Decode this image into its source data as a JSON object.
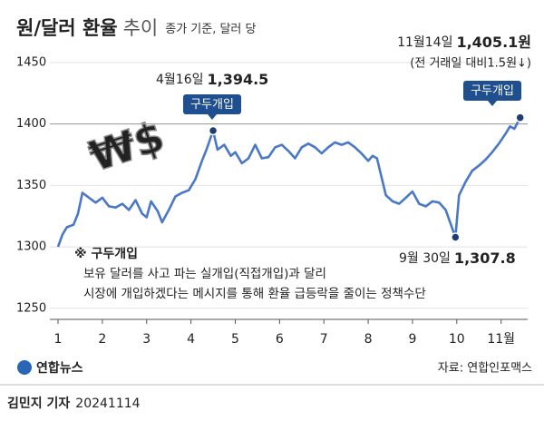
{
  "chart_data": {
    "type": "line",
    "title": "원/달러 환율",
    "title_light": "추이",
    "subtitle": "종가 기준, 달러 당",
    "icon": "₩$",
    "x": [
      1.0,
      1.1,
      1.2,
      1.35,
      1.45,
      1.55,
      1.7,
      1.85,
      2.0,
      2.15,
      2.3,
      2.45,
      2.6,
      2.75,
      2.9,
      3.0,
      3.1,
      3.25,
      3.35,
      3.5,
      3.65,
      3.8,
      3.95,
      4.1,
      4.25,
      4.35,
      4.5,
      4.6,
      4.75,
      4.9,
      5.0,
      5.15,
      5.3,
      5.45,
      5.6,
      5.75,
      5.9,
      6.05,
      6.2,
      6.35,
      6.5,
      6.65,
      6.8,
      6.95,
      7.1,
      7.25,
      7.4,
      7.55,
      7.7,
      7.85,
      8.0,
      8.1,
      8.2,
      8.3,
      8.4,
      8.55,
      8.7,
      8.85,
      9.0,
      9.15,
      9.3,
      9.45,
      9.6,
      9.75,
      9.97,
      10.05,
      10.2,
      10.35,
      10.5,
      10.65,
      10.8,
      10.95,
      11.1,
      11.2,
      11.3,
      11.43
    ],
    "series": [
      {
        "name": "원/달러 환율",
        "color": "#4a78c8",
        "marker_color": "#1e3d73",
        "values": [
          1300,
          1310,
          1316,
          1318,
          1327,
          1344,
          1340,
          1336,
          1340,
          1333,
          1332,
          1335,
          1330,
          1338,
          1327,
          1324,
          1337,
          1329,
          1320,
          1330,
          1341,
          1344,
          1346,
          1355,
          1370,
          1379,
          1394.5,
          1379,
          1383,
          1374,
          1377,
          1368,
          1372,
          1383,
          1372,
          1373,
          1381,
          1383,
          1378,
          1372,
          1381,
          1384,
          1381,
          1376,
          1381,
          1385,
          1383,
          1385,
          1381,
          1376,
          1370,
          1374,
          1372,
          1357,
          1342,
          1337,
          1335,
          1340,
          1345,
          1335,
          1333,
          1337,
          1336,
          1330,
          1307.8,
          1342,
          1353,
          1362,
          1366,
          1371,
          1377,
          1384,
          1392,
          1398,
          1396,
          1405.1
        ],
        "value_labels": [
          null,
          null,
          null,
          null,
          null,
          null,
          null,
          null,
          null,
          null,
          null,
          null,
          null,
          null,
          null,
          null,
          null,
          null,
          null,
          null,
          null,
          null,
          null,
          null,
          null,
          null,
          "1,394.5",
          null,
          null,
          null,
          null,
          null,
          null,
          null,
          null,
          null,
          null,
          null,
          null,
          null,
          null,
          null,
          null,
          null,
          null,
          null,
          null,
          null,
          null,
          null,
          null,
          null,
          null,
          null,
          null,
          null,
          null,
          null,
          null,
          null,
          null,
          null,
          null,
          null,
          "1,307.8",
          null,
          null,
          null,
          null,
          null,
          null,
          null,
          null,
          null,
          null,
          "1,405.1원"
        ]
      }
    ],
    "xlim": [
      1,
      11.6
    ],
    "xticks": [
      1,
      2,
      3,
      4,
      5,
      6,
      7,
      8,
      9,
      10,
      11
    ],
    "xtick_labels": [
      "1",
      "2",
      "3",
      "4",
      "5",
      "6",
      "7",
      "8",
      "9",
      "10",
      "11월"
    ],
    "ylim": [
      1241,
      1458
    ],
    "yticks": [
      1250,
      1300,
      1350,
      1400,
      1450
    ],
    "grid": true,
    "reference_line": 1400,
    "annotations": [
      "4월16일",
      "9월 30일",
      "11월14일",
      "(전 거래일 대비1.5원↓)"
    ],
    "badges": [
      "구두개입",
      "구두개입"
    ],
    "note": {
      "title": "※ 구두개입",
      "lines": [
        "보유 달러를 사고 파는 실개입(직접개입)과 달리",
        "시장에 개입하겠다는 메시지를 통해 환율 급등락을 줄이는 정책수단"
      ]
    },
    "source": "자료: 연합인포맥스",
    "logo": "연합뉴스",
    "byline": {
      "name": "김민지 기자",
      "date": "20241114"
    }
  }
}
